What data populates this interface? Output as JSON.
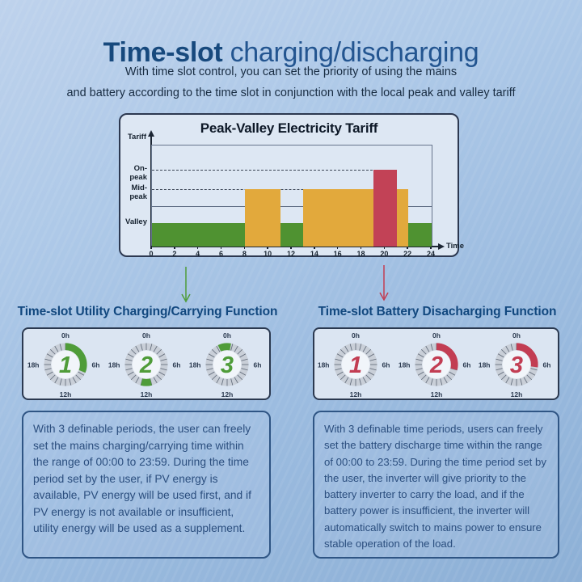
{
  "header": {
    "title_bold": "Time-slot",
    "title_rest": " charging/discharging",
    "subtitle_line1": "With time slot control, you can set the priority of using the mains",
    "subtitle_line2": "and battery according to the time slot in conjunction with the local peak and valley tariff"
  },
  "chart_data": {
    "type": "bar",
    "title": "Peak-Valley Electricity Tariff",
    "xlabel": "Time",
    "ylabel": "Tariff",
    "x_range": [
      0,
      24
    ],
    "x_ticks": [
      0,
      2,
      4,
      6,
      8,
      10,
      12,
      14,
      16,
      18,
      20,
      22,
      24
    ],
    "levels": {
      "valley": 0.232,
      "mid_peak": 0.568,
      "on_peak": 0.76
    },
    "level_labels": {
      "on_peak": "On-peak",
      "mid_peak": "Mid-peak",
      "valley": "Valley"
    },
    "colors": {
      "valley": "#4f9231",
      "mid_peak": "#e2a93c",
      "on_peak": "#c24256"
    },
    "segments": [
      {
        "start": 0,
        "end": 8,
        "level": "valley"
      },
      {
        "start": 8,
        "end": 11,
        "level": "mid_peak"
      },
      {
        "start": 11,
        "end": 13,
        "level": "valley"
      },
      {
        "start": 13,
        "end": 19,
        "level": "mid_peak"
      },
      {
        "start": 19,
        "end": 21,
        "level": "on_peak"
      },
      {
        "start": 21,
        "end": 22,
        "level": "mid_peak"
      },
      {
        "start": 22,
        "end": 24,
        "level": "valley"
      }
    ],
    "solid_gridline_frac": 0.4,
    "dashed_guides": [
      {
        "level": "on_peak",
        "to_hour": 21
      },
      {
        "level": "mid_peak",
        "to_hour": 22
      }
    ],
    "legend": "none"
  },
  "dials_common": {
    "labels": [
      "0h",
      "6h",
      "12h",
      "18h"
    ]
  },
  "left_section": {
    "heading": "Time-slot Utility Charging/Carrying Function",
    "accent_color": "#4f9c39",
    "dials": [
      {
        "number": "1",
        "arc_start_h": 0,
        "arc_end_h": 7.5
      },
      {
        "number": "2",
        "arc_start_h": 11,
        "arc_end_h": 13
      },
      {
        "number": "3",
        "arc_start_h": 22.3,
        "arc_end_h": 24.7
      }
    ],
    "description": "With 3 definable periods, the user can freely set the mains charging/carrying time within the range of 00:00 to 23:59. During the time period set by the user, if PV energy is available, PV energy will be used first, and if PV energy is not available or insufficient, utility energy will be used as a supplement."
  },
  "right_section": {
    "heading": "Time-slot Battery Disacharging Function",
    "accent_color": "#c23d53",
    "dials": [
      {
        "number": "1",
        "arc_start_h": null,
        "arc_end_h": null
      },
      {
        "number": "2",
        "arc_start_h": 0,
        "arc_end_h": 7
      },
      {
        "number": "3",
        "arc_start_h": 0,
        "arc_end_h": 6.5
      }
    ],
    "description": "With 3 definable time periods, users can freely set the battery discharge time within the range of 00:00 to 23:59. During the time period set by the user, the inverter will give priority to the battery inverter to carry the load, and if the battery power is insufficient, the inverter will automatically switch to mains power to ensure stable operation of the load."
  }
}
